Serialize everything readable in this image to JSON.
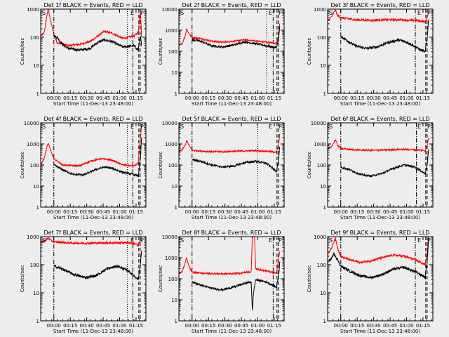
{
  "chart_data": {
    "type": "line",
    "layout": "3x3 grid of panels",
    "shared": {
      "xlabel": "Start Time (11-Dec-13 23:48:00)",
      "ylabel": "Counts/sec",
      "y_scale": "log",
      "x_tick_labels": [
        "00:00",
        "00:15",
        "00:30",
        "00:45",
        "01:00",
        "01:15"
      ],
      "x_tick_minutes_from_start": [
        12,
        27,
        42,
        57,
        72,
        87
      ],
      "xlim_minutes_from_start": [
        0,
        96
      ],
      "series_colors": {
        "events": "#000000",
        "lld": "#ff0000"
      },
      "vertical_markers": [
        "S",
        "E",
        "P"
      ]
    },
    "panels": [
      {
        "title": "Det 1f BLACK = Events, RED = LLD",
        "ylim": [
          1,
          1000
        ],
        "yticks": [
          "1",
          "10",
          "100",
          "1000"
        ],
        "red_profile": [
          [
            0,
            110
          ],
          [
            3,
            140
          ],
          [
            6,
            700
          ],
          [
            7,
            1000
          ],
          [
            9,
            400
          ],
          [
            12,
            120
          ],
          [
            15,
            65
          ],
          [
            25,
            50
          ],
          [
            35,
            55
          ],
          [
            45,
            70
          ],
          [
            52,
            110
          ],
          [
            58,
            160
          ],
          [
            65,
            140
          ],
          [
            75,
            90
          ],
          [
            85,
            110
          ],
          [
            89,
            150
          ],
          [
            91,
            900
          ],
          [
            92,
            110
          ]
        ],
        "black_profile": [
          [
            12,
            110
          ],
          [
            15,
            100
          ],
          [
            20,
            55
          ],
          [
            25,
            40
          ],
          [
            35,
            35
          ],
          [
            45,
            40
          ],
          [
            52,
            65
          ],
          [
            58,
            80
          ],
          [
            65,
            70
          ],
          [
            75,
            45
          ],
          [
            85,
            50
          ],
          [
            89,
            35
          ],
          [
            91,
            120
          ],
          [
            92,
            50
          ]
        ],
        "black_start": 12,
        "dashdot_at": [
          12,
          84
        ],
        "dotted_at": [
          79
        ],
        "dashed_at": [
          89.5,
          90.8
        ]
      },
      {
        "title": "Det 2f BLACK = Events, RED = LLD",
        "ylim": [
          1,
          10000
        ],
        "yticks": [
          "1",
          "10",
          "100",
          "1000",
          "10000"
        ],
        "red_profile": [
          [
            0,
            200
          ],
          [
            3,
            230
          ],
          [
            6,
            600
          ],
          [
            7,
            1200
          ],
          [
            9,
            700
          ],
          [
            12,
            450
          ],
          [
            20,
            400
          ],
          [
            30,
            300
          ],
          [
            40,
            270
          ],
          [
            50,
            300
          ],
          [
            60,
            350
          ],
          [
            72,
            300
          ],
          [
            85,
            250
          ],
          [
            89,
            230
          ],
          [
            91,
            600
          ],
          [
            92,
            2000
          ]
        ],
        "black_profile": [
          [
            12,
            350
          ],
          [
            20,
            300
          ],
          [
            30,
            180
          ],
          [
            40,
            160
          ],
          [
            50,
            200
          ],
          [
            60,
            280
          ],
          [
            72,
            220
          ],
          [
            85,
            160
          ],
          [
            89,
            150
          ],
          [
            91,
            400
          ],
          [
            92,
            1500
          ]
        ],
        "black_start": 12,
        "dashdot_at": [
          12,
          86
        ],
        "dotted_at": [
          80
        ],
        "dashed_at": [
          89.5,
          90.8
        ]
      },
      {
        "title": "Det 3f BLACK = Events, RED = LLD",
        "ylim": [
          1,
          1000
        ],
        "yticks": [
          "1",
          "10",
          "100",
          "1000"
        ],
        "red_profile": [
          [
            0,
            380
          ],
          [
            3,
            500
          ],
          [
            6,
            800
          ],
          [
            7,
            950
          ],
          [
            9,
            600
          ],
          [
            12,
            500
          ],
          [
            25,
            420
          ],
          [
            40,
            400
          ],
          [
            55,
            420
          ],
          [
            65,
            420
          ],
          [
            75,
            400
          ],
          [
            85,
            380
          ],
          [
            89,
            350
          ],
          [
            91,
            500
          ],
          [
            92,
            900
          ]
        ],
        "black_profile": [
          [
            12,
            110
          ],
          [
            15,
            90
          ],
          [
            25,
            50
          ],
          [
            35,
            40
          ],
          [
            45,
            45
          ],
          [
            55,
            65
          ],
          [
            65,
            80
          ],
          [
            75,
            60
          ],
          [
            85,
            35
          ],
          [
            89,
            30
          ],
          [
            91,
            120
          ],
          [
            92,
            400
          ]
        ],
        "black_start": 12,
        "dashdot_at": [
          12,
          80
        ],
        "dotted_at": [],
        "dashed_at": [
          89.5,
          90.8
        ]
      },
      {
        "title": "Det 4f BLACK = Events, RED = LLD",
        "ylim": [
          1,
          10000
        ],
        "yticks": [
          "1",
          "10",
          "100",
          "1000",
          "10000"
        ],
        "red_profile": [
          [
            0,
            100
          ],
          [
            3,
            200
          ],
          [
            6,
            800
          ],
          [
            7,
            1100
          ],
          [
            9,
            500
          ],
          [
            12,
            200
          ],
          [
            20,
            100
          ],
          [
            35,
            90
          ],
          [
            45,
            150
          ],
          [
            55,
            200
          ],
          [
            65,
            170
          ],
          [
            75,
            100
          ],
          [
            85,
            90
          ],
          [
            89,
            120
          ],
          [
            91,
            2000
          ],
          [
            92,
            8000
          ]
        ],
        "black_profile": [
          [
            12,
            100
          ],
          [
            20,
            60
          ],
          [
            30,
            35
          ],
          [
            40,
            35
          ],
          [
            50,
            60
          ],
          [
            58,
            80
          ],
          [
            65,
            70
          ],
          [
            75,
            45
          ],
          [
            85,
            35
          ],
          [
            89,
            30
          ],
          [
            91,
            200
          ],
          [
            92,
            2000
          ]
        ],
        "black_start": 12,
        "dashdot_at": [
          12,
          84
        ],
        "dotted_at": [
          79
        ],
        "dashed_at": [
          89.5,
          90.8
        ]
      },
      {
        "title": "Det 5f BLACK = Events, RED = LLD",
        "ylim": [
          1,
          10000
        ],
        "yticks": [
          "1",
          "10",
          "100",
          "1000",
          "10000"
        ],
        "red_profile": [
          [
            0,
            450
          ],
          [
            3,
            520
          ],
          [
            6,
            900
          ],
          [
            7,
            1500
          ],
          [
            9,
            900
          ],
          [
            12,
            500
          ],
          [
            25,
            440
          ],
          [
            40,
            420
          ],
          [
            55,
            460
          ],
          [
            70,
            480
          ],
          [
            80,
            450
          ],
          [
            87,
            420
          ],
          [
            89,
            400
          ],
          [
            91,
            900
          ],
          [
            92,
            3000
          ]
        ],
        "black_profile": [
          [
            12,
            180
          ],
          [
            20,
            150
          ],
          [
            30,
            100
          ],
          [
            40,
            80
          ],
          [
            50,
            90
          ],
          [
            60,
            130
          ],
          [
            70,
            150
          ],
          [
            80,
            120
          ],
          [
            87,
            60
          ],
          [
            89,
            50
          ],
          [
            91,
            200
          ],
          [
            92,
            800
          ]
        ],
        "black_start": 12,
        "dashdot_at": [
          12
        ],
        "dotted_at": [
          72
        ],
        "dashed_at": [
          89.5,
          90.8
        ]
      },
      {
        "title": "Det 6f BLACK = Events, RED = LLD",
        "ylim": [
          1,
          10000
        ],
        "yticks": [
          "1",
          "10",
          "100",
          "1000",
          "10000"
        ],
        "red_profile": [
          [
            0,
            550
          ],
          [
            3,
            700
          ],
          [
            6,
            1200
          ],
          [
            7,
            1600
          ],
          [
            9,
            900
          ],
          [
            12,
            600
          ],
          [
            25,
            520
          ],
          [
            40,
            500
          ],
          [
            55,
            520
          ],
          [
            70,
            560
          ],
          [
            80,
            520
          ],
          [
            87,
            500
          ],
          [
            89,
            480
          ],
          [
            91,
            900
          ],
          [
            92,
            2000
          ]
        ],
        "black_profile": [
          [
            12,
            80
          ],
          [
            20,
            60
          ],
          [
            30,
            35
          ],
          [
            40,
            30
          ],
          [
            50,
            40
          ],
          [
            60,
            70
          ],
          [
            70,
            100
          ],
          [
            80,
            80
          ],
          [
            87,
            45
          ],
          [
            89,
            40
          ],
          [
            91,
            120
          ],
          [
            92,
            500
          ]
        ],
        "black_start": 12,
        "dashdot_at": [
          12,
          81
        ],
        "dotted_at": [],
        "dashed_at": [
          89.5,
          90.8
        ]
      },
      {
        "title": "Det 7f BLACK = Events, RED = LLD",
        "ylim": [
          1,
          1000
        ],
        "yticks": [
          "1",
          "10",
          "100",
          "1000"
        ],
        "red_profile": [
          [
            0,
            650
          ],
          [
            4,
            700
          ],
          [
            7,
            900
          ],
          [
            9,
            750
          ],
          [
            12,
            650
          ],
          [
            25,
            600
          ],
          [
            40,
            580
          ],
          [
            55,
            600
          ],
          [
            70,
            600
          ],
          [
            80,
            620
          ],
          [
            87,
            550
          ],
          [
            89,
            450
          ],
          [
            91,
            800
          ],
          [
            92,
            1000
          ]
        ],
        "black_profile": [
          [
            12,
            90
          ],
          [
            20,
            70
          ],
          [
            30,
            45
          ],
          [
            40,
            35
          ],
          [
            50,
            40
          ],
          [
            60,
            70
          ],
          [
            70,
            90
          ],
          [
            80,
            60
          ],
          [
            87,
            35
          ],
          [
            89,
            30
          ],
          [
            91,
            110
          ],
          [
            92,
            300
          ]
        ],
        "black_start": 12,
        "dashdot_at": [
          12,
          84
        ],
        "dotted_at": [
          79
        ],
        "dashed_at": [
          89.5,
          90.8
        ]
      },
      {
        "title": "Det 8f BLACK = Events, RED = LLD",
        "ylim": [
          1,
          10000
        ],
        "yticks": [
          "1",
          "10",
          "100",
          "1000",
          "10000"
        ],
        "red_profile": [
          [
            0,
            180
          ],
          [
            3,
            220
          ],
          [
            6,
            600
          ],
          [
            7,
            1000
          ],
          [
            9,
            400
          ],
          [
            12,
            200
          ],
          [
            25,
            180
          ],
          [
            40,
            170
          ],
          [
            55,
            180
          ],
          [
            66,
            220
          ],
          [
            67,
            10000
          ],
          [
            69,
            10000
          ],
          [
            70,
            300
          ],
          [
            80,
            230
          ],
          [
            87,
            200
          ],
          [
            89,
            180
          ],
          [
            91,
            900
          ],
          [
            92,
            2000
          ]
        ],
        "black_profile": [
          [
            12,
            70
          ],
          [
            20,
            50
          ],
          [
            30,
            35
          ],
          [
            40,
            30
          ],
          [
            50,
            40
          ],
          [
            60,
            60
          ],
          [
            66,
            70
          ],
          [
            67,
            3
          ],
          [
            68,
            20
          ],
          [
            70,
            90
          ],
          [
            80,
            70
          ],
          [
            87,
            45
          ],
          [
            89,
            40
          ],
          [
            91,
            150
          ],
          [
            92,
            600
          ]
        ],
        "black_start": 12,
        "dashdot_at": [
          12,
          86
        ],
        "dotted_at": [],
        "dashed_at": [
          89.5,
          90.8
        ]
      },
      {
        "title": "Det 9f BLACK = Events, RED = LLD",
        "ylim": [
          1,
          1000
        ],
        "yticks": [
          "1",
          "10",
          "100",
          "1000"
        ],
        "red_profile": [
          [
            0,
            250
          ],
          [
            3,
            350
          ],
          [
            6,
            700
          ],
          [
            7,
            900
          ],
          [
            9,
            400
          ],
          [
            12,
            200
          ],
          [
            20,
            150
          ],
          [
            30,
            120
          ],
          [
            40,
            140
          ],
          [
            50,
            180
          ],
          [
            60,
            220
          ],
          [
            70,
            200
          ],
          [
            80,
            150
          ],
          [
            87,
            110
          ],
          [
            89,
            100
          ],
          [
            91,
            300
          ],
          [
            92,
            1000
          ]
        ],
        "black_profile": [
          [
            0,
            120
          ],
          [
            3,
            160
          ],
          [
            6,
            250
          ],
          [
            9,
            150
          ],
          [
            12,
            90
          ],
          [
            20,
            60
          ],
          [
            30,
            40
          ],
          [
            40,
            35
          ],
          [
            50,
            45
          ],
          [
            60,
            70
          ],
          [
            70,
            80
          ],
          [
            80,
            55
          ],
          [
            87,
            40
          ],
          [
            89,
            35
          ],
          [
            91,
            150
          ],
          [
            92,
            800
          ]
        ],
        "black_start": 0,
        "dashdot_at": [
          12,
          80
        ],
        "dotted_at": [],
        "dashed_at": [
          89.5,
          90.8
        ]
      }
    ]
  }
}
